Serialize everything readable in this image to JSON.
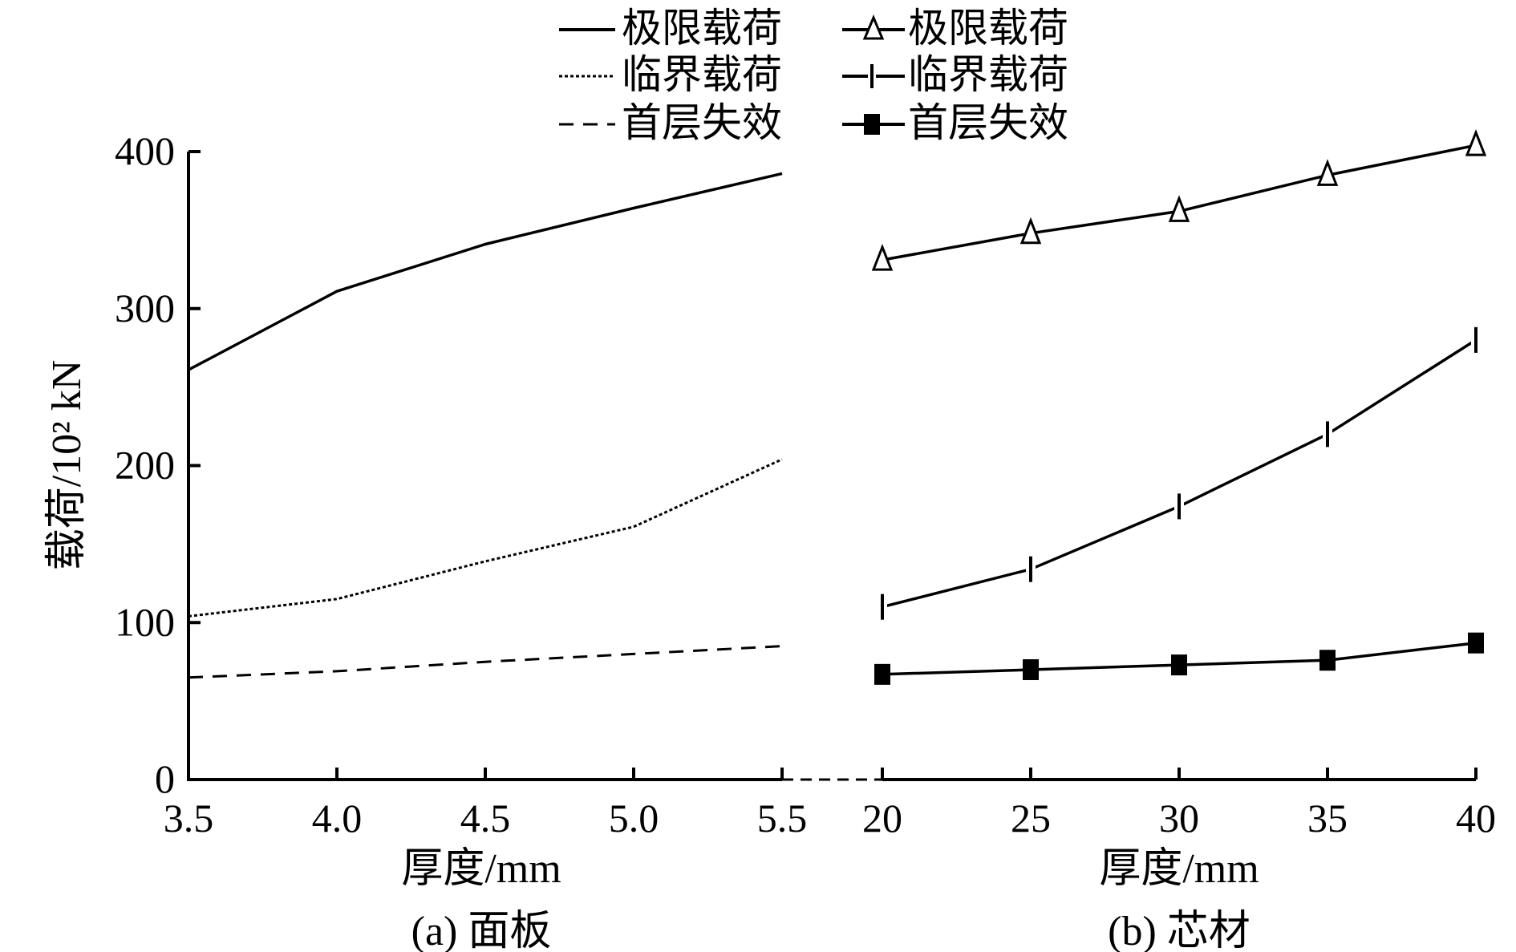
{
  "colors": {
    "ink": "#000000",
    "background": "#ffffff"
  },
  "legend": {
    "left": [
      {
        "label": "极限载荷",
        "style": "solid"
      },
      {
        "label": "临界载荷",
        "style": "dotted"
      },
      {
        "label": "首层失效",
        "style": "dashed"
      }
    ],
    "right": [
      {
        "label": "极限载荷",
        "marker": "triangle"
      },
      {
        "label": "临界载荷",
        "marker": "bar"
      },
      {
        "label": "首层失效",
        "marker": "square"
      }
    ]
  },
  "chart_data": [
    {
      "id": "a",
      "type": "line",
      "caption": "(a) 面板",
      "xlabel": "厚度/mm",
      "ylabel": "载荷/10² kN",
      "ylim": [
        0,
        400
      ],
      "yticks": [
        "0",
        "100",
        "200",
        "300",
        "400"
      ],
      "xticks": [
        "3.5",
        "4.0",
        "4.5",
        "5.0",
        "5.5"
      ],
      "x": [
        3.5,
        4.0,
        4.5,
        5.0,
        5.5
      ],
      "series": [
        {
          "name": "极限载荷",
          "style": "solid",
          "values": [
            261,
            311,
            341,
            364,
            386
          ]
        },
        {
          "name": "临界载荷",
          "style": "dotted",
          "values": [
            104,
            115,
            139,
            161,
            204
          ]
        },
        {
          "name": "首层失效",
          "style": "dashed",
          "values": [
            65,
            69,
            75,
            80,
            85
          ]
        }
      ]
    },
    {
      "id": "b",
      "type": "line",
      "caption": "(b) 芯材",
      "xlabel": "厚度/mm",
      "ylim": [
        0,
        400
      ],
      "xticks": [
        "20",
        "25",
        "30",
        "35",
        "40"
      ],
      "x": [
        20,
        25,
        30,
        35,
        40
      ],
      "series": [
        {
          "name": "极限载荷",
          "marker": "triangle",
          "values": [
            331,
            348,
            362,
            385,
            404
          ]
        },
        {
          "name": "临界载荷",
          "marker": "bar",
          "values": [
            110,
            134,
            174,
            220,
            280
          ]
        },
        {
          "name": "首层失效",
          "marker": "square",
          "values": [
            67,
            70,
            73,
            76,
            87
          ]
        }
      ]
    }
  ]
}
